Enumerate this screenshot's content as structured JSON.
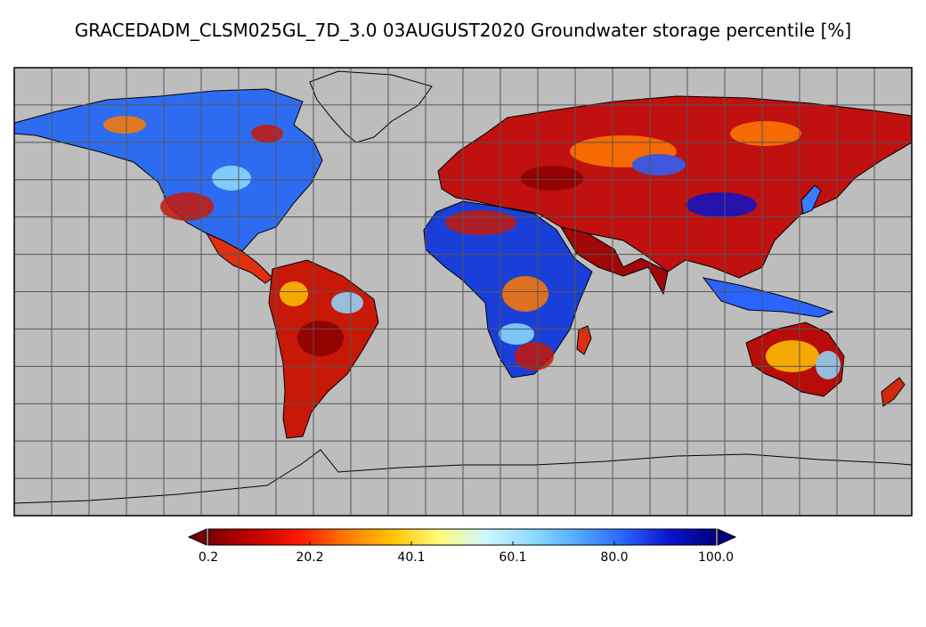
{
  "title": "GRACEDADM_CLSM025GL_7D_3.0 03AUGUST2020 Groundwater storage percentile [%]",
  "map": {
    "ocean_color": "#bdbdbd",
    "grid_color": "#555555",
    "coast_color": "#000000",
    "grid_lines": true
  },
  "colorbar": {
    "ticks": [
      "0.2",
      "20.2",
      "40.1",
      "60.1",
      "80.0",
      "100.0"
    ],
    "min": 0.2,
    "max": 100.0,
    "colors": [
      "#7a0000",
      "#c40000",
      "#ff1a00",
      "#ff7a00",
      "#ffc400",
      "#fffb7a",
      "#cff7ff",
      "#8fdcff",
      "#52aaff",
      "#2a63ff",
      "#0a14c8",
      "#00007f"
    ],
    "extend_below_color": "#7a0000",
    "extend_above_color": "#00007f"
  }
}
